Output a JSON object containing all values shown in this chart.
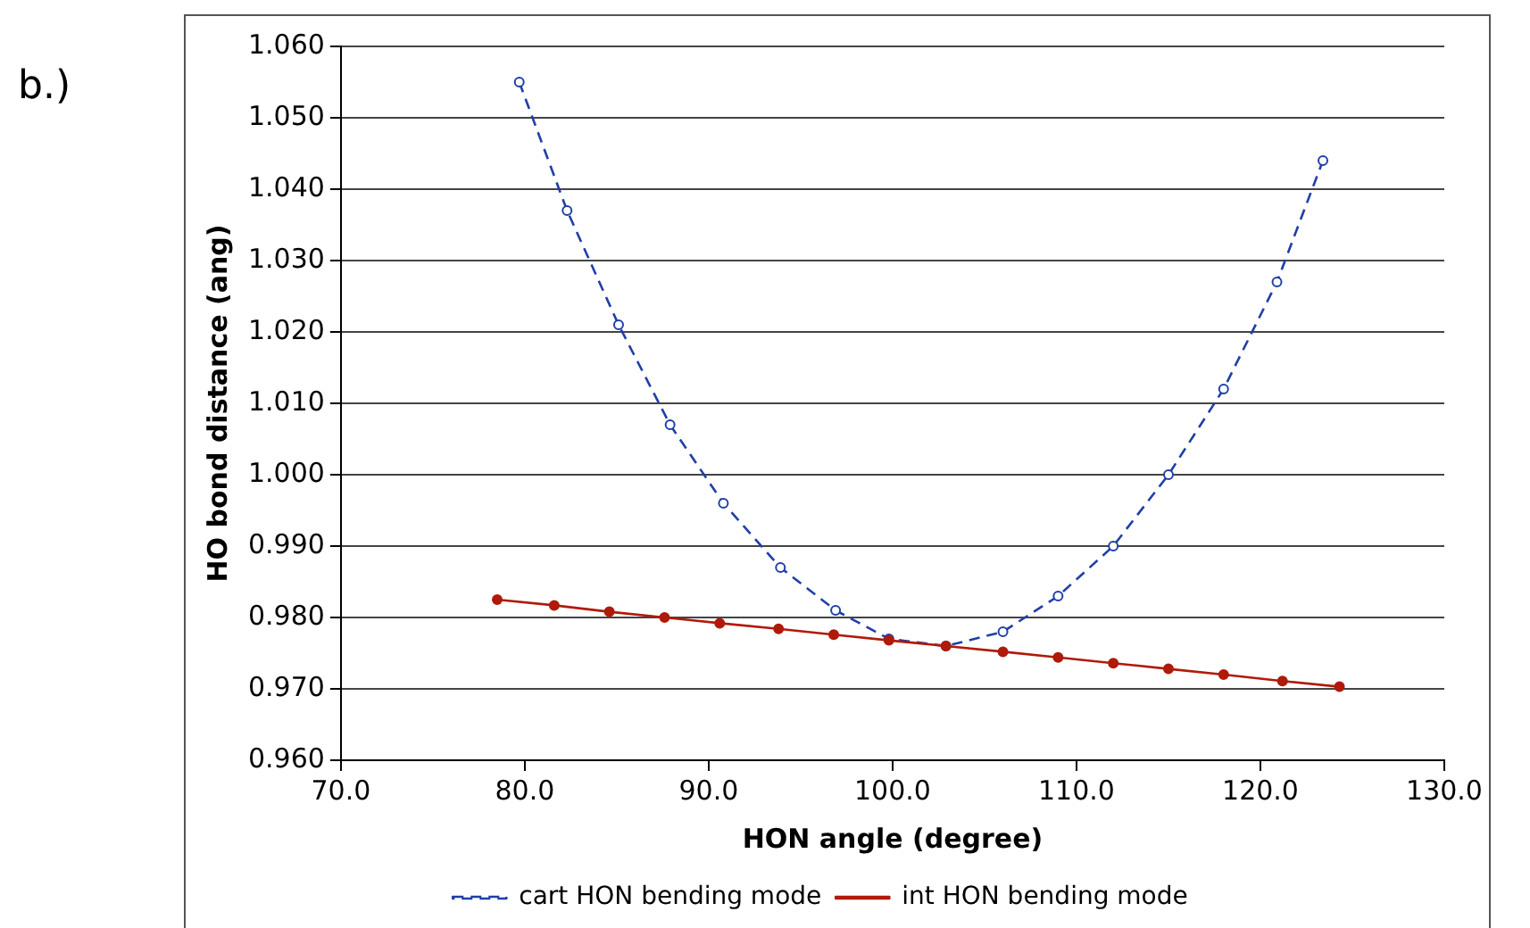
{
  "chart_data": {
    "type": "line",
    "xlabel": "HON angle (degree)",
    "ylabel": "HO bond distance (ang)",
    "annotations": [
      "b.)"
    ],
    "xlim": [
      70,
      130
    ],
    "xticks": [
      {
        "value": 70,
        "label": "70.0"
      },
      {
        "value": 80,
        "label": "80.0"
      },
      {
        "value": 90,
        "label": "90.0"
      },
      {
        "value": 100,
        "label": "100.0"
      },
      {
        "value": 110,
        "label": "110.0"
      },
      {
        "value": 120,
        "label": "120.0"
      },
      {
        "value": 130,
        "label": "130.0"
      }
    ],
    "ylim": [
      0.96,
      1.06
    ],
    "yticks": [
      {
        "value": 0.96,
        "label": "0.960"
      },
      {
        "value": 0.97,
        "label": "0.970"
      },
      {
        "value": 0.98,
        "label": "0.980"
      },
      {
        "value": 0.99,
        "label": "0.990"
      },
      {
        "value": 1.0,
        "label": "1.000"
      },
      {
        "value": 1.01,
        "label": "1.010"
      },
      {
        "value": 1.02,
        "label": "1.020"
      },
      {
        "value": 1.03,
        "label": "1.030"
      },
      {
        "value": 1.04,
        "label": "1.040"
      },
      {
        "value": 1.05,
        "label": "1.050"
      },
      {
        "value": 1.06,
        "label": "1.060"
      }
    ],
    "grid": "y",
    "legend": "bottom",
    "marker": "circle",
    "series": [
      {
        "name": "cart HON bending mode",
        "color": "#1f3fa8",
        "line_style": "dashed",
        "x": [
          79.7,
          82.3,
          85.1,
          87.9,
          90.8,
          93.9,
          96.9,
          99.8,
          102.9,
          106.0,
          109.0,
          112.0,
          115.0,
          118.0,
          120.9,
          123.4
        ],
        "values": [
          1.055,
          1.037,
          1.021,
          1.007,
          0.996,
          0.987,
          0.981,
          0.977,
          0.976,
          0.978,
          0.983,
          0.99,
          1.0,
          1.012,
          1.027,
          1.044
        ]
      },
      {
        "name": "int HON bending mode",
        "color": "#b01a0a",
        "line_style": "solid",
        "x": [
          78.5,
          81.6,
          84.6,
          87.6,
          90.6,
          93.8,
          96.8,
          99.8,
          102.9,
          106.0,
          109.0,
          112.0,
          115.0,
          118.0,
          121.2,
          124.3
        ],
        "values": [
          0.9825,
          0.9817,
          0.9808,
          0.98,
          0.9792,
          0.9784,
          0.9776,
          0.9768,
          0.976,
          0.9752,
          0.9744,
          0.9736,
          0.9728,
          0.972,
          0.9711,
          0.9703
        ]
      }
    ]
  }
}
